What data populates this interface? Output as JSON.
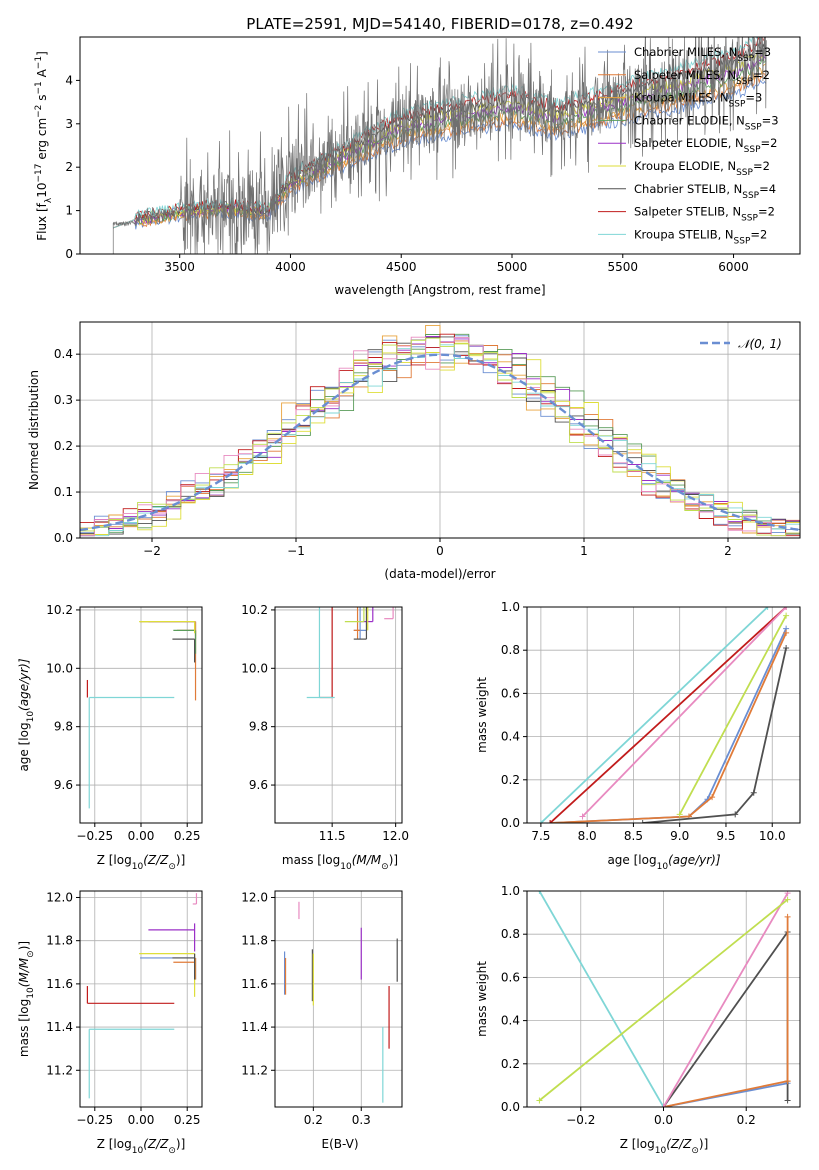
{
  "page": {
    "title": "PLATE=2591, MJD=54140, FIBERID=0178, z=0.492"
  },
  "series_colors": [
    "#6a8ed2",
    "#e07b39",
    "#e8a33d",
    "#5a9c5a",
    "#9b30c7",
    "#dede3a",
    "#505050",
    "#c11b1b",
    "#7fd6d6"
  ],
  "extra_colors": {
    "pink": "#e88ac0",
    "lime": "#c0de50",
    "normal_line": "#6a8ed2"
  },
  "chart_data": [
    {
      "id": "spectrum",
      "type": "line",
      "title": "PLATE=2591, MJD=54140, FIBERID=0178, z=0.492",
      "xlabel": "wavelength [Angstrom, rest frame]",
      "ylabel_pre": "Flux [f",
      "ylabel_sub": "λ",
      "ylabel_mid": "10",
      "ylabel_exp1": "−17",
      "ylabel_mid2": " erg cm",
      "ylabel_exp2": "−2",
      "ylabel_mid3": " s",
      "ylabel_exp3": "−1",
      "ylabel_mid4": " A",
      "ylabel_exp4": "−1",
      "ylabel_post": "]",
      "xlim": [
        3050,
        6300
      ],
      "ylim": [
        0,
        5
      ],
      "xticks": [
        "3500",
        "4000",
        "4500",
        "5000",
        "5500",
        "6000"
      ],
      "yticks": [
        "0",
        "1",
        "2",
        "3",
        "4"
      ],
      "grid": false,
      "legend_position": "top-right",
      "data_line": {
        "x_start": 3200,
        "x_end": 6150,
        "x_data_start": 3300,
        "anchors_x": [
          3200,
          3300,
          3500,
          3700,
          3900,
          4000,
          4500,
          5000,
          5200,
          5500,
          6000,
          6150
        ],
        "anchors_y": [
          0.7,
          0.8,
          1.0,
          1.1,
          1.0,
          1.7,
          3.0,
          3.5,
          3.2,
          3.6,
          4.3,
          4.7
        ]
      },
      "legend": [
        {
          "label": "Chabrier MILES, N",
          "sub": "SSP",
          "eq": "=3"
        },
        {
          "label": "Salpeter MILES, N",
          "sub": "SSP",
          "eq": "=2"
        },
        {
          "label": "Kroupa MILES, N",
          "sub": "SSP",
          "eq": "=3"
        },
        {
          "label": "Chabrier ELODIE, N",
          "sub": "SSP",
          "eq": "=3"
        },
        {
          "label": "Salpeter ELODIE, N",
          "sub": "SSP",
          "eq": "=2"
        },
        {
          "label": "Kroupa ELODIE, N",
          "sub": "SSP",
          "eq": "=2"
        },
        {
          "label": "Chabrier STELIB, N",
          "sub": "SSP",
          "eq": "=4"
        },
        {
          "label": "Salpeter STELIB, N",
          "sub": "SSP",
          "eq": "=2"
        },
        {
          "label": "Kroupa STELIB, N",
          "sub": "SSP",
          "eq": "=2"
        }
      ]
    },
    {
      "id": "residuals",
      "type": "line",
      "xlabel": "(data-model)/error",
      "ylabel": "Normed distribution",
      "xlim": [
        -2.5,
        2.5
      ],
      "ylim": [
        0,
        0.47
      ],
      "xticks": [
        "−2",
        "−1",
        "0",
        "1",
        "2"
      ],
      "yticks": [
        "0.0",
        "0.1",
        "0.2",
        "0.3",
        "0.4"
      ],
      "grid": true,
      "legend_position": "top-right",
      "legend": [
        {
          "label": "𝒩(0, 1)"
        }
      ],
      "normal": {
        "mean": 0,
        "sigma": 1
      },
      "hist_bins": {
        "start": -2.5,
        "end": 2.5,
        "width": 0.1
      }
    },
    {
      "id": "age_vs_Z",
      "type": "scatter",
      "xlabel": "Z [log",
      "xlabel_sub": "10",
      "xlabel_post": "(Z/Z",
      "xlabel_sub2": "⊙",
      "xlabel_end": ")]",
      "ylabel": "age  [log",
      "ylabel_sub": "10",
      "ylabel_post": "(age/yr)]",
      "xlim": [
        -0.33,
        0.33
      ],
      "ylim": [
        9.47,
        10.21
      ],
      "xticks": [
        "−0.25",
        "0.00",
        "0.25"
      ],
      "yticks": [
        "9.6",
        "9.8",
        "10.0",
        "10.2"
      ],
      "grid": true,
      "points": [
        {
          "x": 0.295,
          "y": 10.16,
          "xerr": [
            0.3,
            0.0
          ],
          "yerr": [
            0.06,
            0.0
          ],
          "c": 0
        },
        {
          "x": 0.295,
          "y": 10.13,
          "xerr": [
            0.1,
            0.0
          ],
          "yerr": [
            0.24,
            0.0
          ],
          "c": 1
        },
        {
          "x": 0.295,
          "y": 10.16,
          "xerr": [
            0.3,
            0.0
          ],
          "yerr": [
            0.05,
            0.0
          ],
          "c": 2
        },
        {
          "x": 0.295,
          "y": 10.13,
          "xerr": [
            0.12,
            0.0
          ],
          "yerr": [
            0.08,
            0.0
          ],
          "c": 3
        },
        {
          "x": 0.29,
          "y": 10.16,
          "xerr": [
            0.25,
            0.0
          ],
          "yerr": [
            0.03,
            0.0
          ],
          "c": 4
        },
        {
          "x": 0.29,
          "y": 10.16,
          "xerr": [
            0.3,
            0.0
          ],
          "yerr": [
            0.04,
            0.0
          ],
          "c": 5
        },
        {
          "x": 0.29,
          "y": 10.1,
          "xerr": [
            0.12,
            0.0
          ],
          "yerr": [
            0.08,
            0.0
          ],
          "c": 6
        },
        {
          "x": -0.29,
          "y": 9.9,
          "xerr": [
            0.0,
            0.0
          ],
          "yerr": [
            0.0,
            0.06
          ],
          "c": 7
        },
        {
          "x": -0.28,
          "y": 9.9,
          "xerr": [
            0.0,
            0.46
          ],
          "yerr": [
            0.38,
            0.0
          ],
          "c": 8
        }
      ]
    },
    {
      "id": "age_vs_mass",
      "type": "scatter",
      "xlabel": "mass [log",
      "xlabel_sub": "10",
      "xlabel_post": "(M/M",
      "xlabel_sub2": "⊙",
      "xlabel_end": ")]",
      "xlim": [
        11.05,
        12.05
      ],
      "ylim": [
        9.47,
        10.21
      ],
      "xticks": [
        "11.5",
        "12.0"
      ],
      "yticks": [
        "9.6",
        "9.8",
        "10.0",
        "10.2"
      ],
      "grid": true,
      "points": [
        {
          "x": 11.72,
          "y": 10.13,
          "xerr": [
            0.05,
            0.05
          ],
          "yerr": [
            0.03,
            0.23
          ],
          "c": 0
        },
        {
          "x": 11.7,
          "y": 10.13,
          "xerr": [
            0.03,
            0.02
          ],
          "yerr": [
            0.03,
            0.23
          ],
          "c": 1
        },
        {
          "x": 11.82,
          "y": 10.16,
          "xerr": [
            0.1,
            0.0
          ],
          "yerr": [
            0.0,
            0.05
          ],
          "c": 4
        },
        {
          "x": 11.78,
          "y": 10.16,
          "xerr": [
            0.0,
            0.0
          ],
          "yerr": [
            0.03,
            0.18
          ],
          "c": 5
        },
        {
          "x": 11.77,
          "y": 10.1,
          "xerr": [
            0.1,
            0.0
          ],
          "yerr": [
            0.0,
            0.12
          ],
          "c": 6
        },
        {
          "x": 11.5,
          "y": 9.9,
          "xerr": [
            0.1,
            0.0
          ],
          "yerr": [
            0.0,
            0.34
          ],
          "c": 7
        },
        {
          "x": 11.4,
          "y": 9.9,
          "xerr": [
            0.1,
            0.12
          ],
          "yerr": [
            0.0,
            0.39
          ],
          "c": 8
        },
        {
          "x": 11.98,
          "y": 10.17,
          "xerr": [
            0.07,
            0.0
          ],
          "yerr": [
            0.0,
            0.07
          ],
          "c": "pink"
        },
        {
          "x": 11.75,
          "y": 10.16,
          "xerr": [
            0.15,
            0.0
          ],
          "yerr": [
            0.0,
            0.2
          ],
          "c": "lime"
        }
      ]
    },
    {
      "id": "cum_age",
      "type": "line",
      "xlabel": "age  [log",
      "xlabel_sub": "10",
      "xlabel_post": "(age/yr)]",
      "ylabel": "mass weight",
      "xlim": [
        7.35,
        10.3
      ],
      "ylim": [
        0,
        1.0
      ],
      "xticks": [
        "7.5",
        "8.0",
        "8.5",
        "9.0",
        "9.5",
        "10.0"
      ],
      "yticks": [
        "0.0",
        "0.2",
        "0.4",
        "0.6",
        "0.8",
        "1.0"
      ],
      "grid": true,
      "lines": [
        {
          "c": 0,
          "x": [
            7.6,
            9.1,
            9.3,
            10.15
          ],
          "y": [
            0.0,
            0.03,
            0.11,
            0.9
          ]
        },
        {
          "c": 1,
          "x": [
            7.6,
            9.1,
            9.35,
            10.15
          ],
          "y": [
            0.0,
            0.03,
            0.12,
            0.88
          ]
        },
        {
          "c": 6,
          "x": [
            8.6,
            9.6,
            9.8,
            10.15
          ],
          "y": [
            0.0,
            0.04,
            0.14,
            0.81
          ]
        },
        {
          "c": 7,
          "x": [
            7.6,
            10.15
          ],
          "y": [
            0.0,
            1.0
          ]
        },
        {
          "c": 8,
          "x": [
            7.5,
            9.95
          ],
          "y": [
            0.0,
            1.0
          ]
        },
        {
          "c": "pink",
          "x": [
            7.95,
            10.15
          ],
          "y": [
            0.03,
            1.0
          ]
        },
        {
          "c": "lime",
          "x": [
            9.0,
            10.15
          ],
          "y": [
            0.04,
            0.96
          ]
        }
      ]
    },
    {
      "id": "mass_vs_Z",
      "type": "scatter",
      "xlabel": "Z [log",
      "xlabel_sub": "10",
      "xlabel_post": "(Z/Z",
      "xlabel_sub2": "⊙",
      "xlabel_end": ")]",
      "ylabel": "mass [log",
      "ylabel_sub": "10",
      "ylabel_post": "(M/M",
      "ylabel_sub2": "⊙",
      "ylabel_end": ")]",
      "xlim": [
        -0.33,
        0.33
      ],
      "ylim": [
        11.03,
        12.03
      ],
      "xticks": [
        "−0.25",
        "0.00",
        "0.25"
      ],
      "yticks": [
        "11.2",
        "11.4",
        "11.6",
        "11.8",
        "12.0"
      ],
      "grid": true,
      "points": [
        {
          "x": 0.295,
          "y": 11.72,
          "xerr": [
            0.3,
            0.0
          ],
          "yerr": [
            0.1,
            0.0
          ],
          "c": 0
        },
        {
          "x": 0.295,
          "y": 11.7,
          "xerr": [
            0.12,
            0.0
          ],
          "yerr": [
            0.08,
            0.02
          ],
          "c": 1
        },
        {
          "x": 0.29,
          "y": 11.85,
          "xerr": [
            0.25,
            0.0
          ],
          "yerr": [
            0.1,
            0.03
          ],
          "c": 4
        },
        {
          "x": 0.29,
          "y": 11.74,
          "xerr": [
            0.3,
            0.0
          ],
          "yerr": [
            0.2,
            0.0
          ],
          "c": 5
        },
        {
          "x": 0.29,
          "y": 11.72,
          "xerr": [
            0.12,
            0.0
          ],
          "yerr": [
            0.1,
            0.02
          ],
          "c": 6
        },
        {
          "x": -0.29,
          "y": 11.51,
          "xerr": [
            0.0,
            0.47
          ],
          "yerr": [
            0.0,
            0.08
          ],
          "c": 7
        },
        {
          "x": -0.28,
          "y": 11.39,
          "xerr": [
            0.0,
            0.46
          ],
          "yerr": [
            0.32,
            0.0
          ],
          "c": 8
        },
        {
          "x": 0.3,
          "y": 11.97,
          "xerr": [
            0.02,
            0.0
          ],
          "yerr": [
            0.0,
            0.05
          ],
          "c": "pink"
        }
      ]
    },
    {
      "id": "mass_vs_ebv",
      "type": "scatter",
      "xlabel": "E(B-V)",
      "xlim": [
        0.12,
        0.385
      ],
      "ylim": [
        11.03,
        12.03
      ],
      "xticks": [
        "0.2",
        "0.3"
      ],
      "yticks": [
        "11.2",
        "11.4",
        "11.6",
        "11.8",
        "12.0"
      ],
      "grid": true,
      "segments": [
        {
          "c": 0,
          "x": 0.14,
          "y0": 11.55,
          "y1": 11.75
        },
        {
          "c": 1,
          "x": 0.142,
          "y0": 11.55,
          "y1": 11.72
        },
        {
          "c": 6,
          "x": 0.198,
          "y0": 11.52,
          "y1": 11.76
        },
        {
          "c": 5,
          "x": 0.2,
          "y0": 11.5,
          "y1": 11.74
        },
        {
          "c": 4,
          "x": 0.3,
          "y0": 11.62,
          "y1": 11.86
        },
        {
          "c": 7,
          "x": 0.358,
          "y0": 11.3,
          "y1": 11.59
        },
        {
          "c": 8,
          "x": 0.345,
          "y0": 11.05,
          "y1": 11.4
        },
        {
          "c": 6,
          "x": 0.375,
          "y0": 11.61,
          "y1": 11.81
        },
        {
          "c": "pink",
          "x": 0.17,
          "y0": 11.9,
          "y1": 11.98
        }
      ]
    },
    {
      "id": "cum_Z",
      "type": "line",
      "xlabel": "Z [log",
      "xlabel_sub": "10",
      "xlabel_post": "(Z/Z",
      "xlabel_sub2": "⊙",
      "xlabel_end": ")]",
      "ylabel": "mass weight",
      "xlim": [
        -0.33,
        0.33
      ],
      "ylim": [
        0,
        1.0
      ],
      "xticks": [
        "−0.2",
        "0.0",
        "0.2"
      ],
      "yticks": [
        "0.0",
        "0.2",
        "0.4",
        "0.6",
        "0.8",
        "1.0"
      ],
      "grid": true,
      "lines": [
        {
          "c": 8,
          "x": [
            -0.3,
            0.0
          ],
          "y": [
            1.0,
            0.0
          ]
        },
        {
          "c": 0,
          "x": [
            0.0,
            0.3
          ],
          "y": [
            0.0,
            0.11
          ]
        },
        {
          "c": 1,
          "x": [
            0.0,
            0.3
          ],
          "y": [
            0.0,
            0.12
          ]
        },
        {
          "c": 6,
          "x": [
            0.0,
            0.3,
            0.3
          ],
          "y": [
            0.0,
            0.81,
            0.03
          ]
        },
        {
          "c": "pink",
          "x": [
            0.0,
            0.3
          ],
          "y": [
            0.0,
            0.99
          ]
        },
        {
          "c": "lime",
          "x": [
            -0.3,
            0.3
          ],
          "y": [
            0.03,
            0.96
          ]
        },
        {
          "c": 1,
          "x": [
            0.3,
            0.3
          ],
          "y": [
            0.12,
            0.88
          ]
        }
      ]
    }
  ]
}
